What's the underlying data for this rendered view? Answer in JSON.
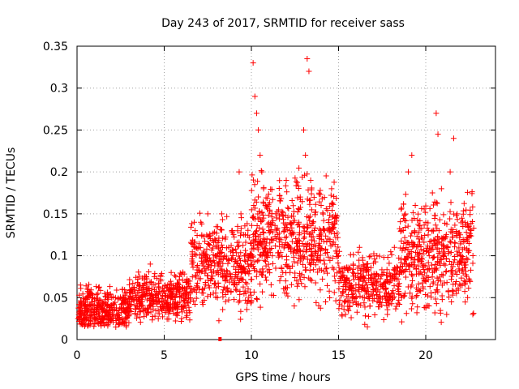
{
  "chart_data": {
    "type": "scatter",
    "title": "Day 243 of 2017, SRMTID for receiver sass",
    "xlabel": "GPS time / hours",
    "ylabel": "SRMTID / TECUs",
    "xlim": [
      0,
      24
    ],
    "ylim": [
      0,
      0.35
    ],
    "x_ticks": [
      0,
      5,
      10,
      15,
      20
    ],
    "x_tick_labels": [
      "0",
      "5",
      "10",
      "15",
      "20"
    ],
    "y_ticks": [
      0,
      0.05,
      0.1,
      0.15,
      0.2,
      0.25,
      0.3,
      0.35
    ],
    "y_tick_labels": [
      "0",
      "0.05",
      "0.1",
      "0.15",
      "0.2",
      "0.25",
      "0.3",
      "0.35"
    ],
    "grid": true,
    "marker": "+",
    "color": "#ff0000",
    "marker_low": {
      "x": 8.2,
      "y": 0
    },
    "points": [
      [
        0.1,
        0.03
      ],
      [
        0.2,
        0.065
      ],
      [
        0.3,
        0.02
      ],
      [
        0.4,
        0.045
      ],
      [
        0.5,
        0.035
      ],
      [
        0.7,
        0.04
      ],
      [
        0.9,
        0.05
      ],
      [
        1.0,
        0.03
      ],
      [
        1.2,
        0.055
      ],
      [
        1.4,
        0.035
      ],
      [
        1.6,
        0.045
      ],
      [
        1.8,
        0.02
      ],
      [
        2.0,
        0.04
      ],
      [
        2.2,
        0.05
      ],
      [
        2.4,
        0.035
      ],
      [
        2.6,
        0.06
      ],
      [
        2.8,
        0.025
      ],
      [
        3.0,
        0.045
      ],
      [
        3.2,
        0.055
      ],
      [
        3.4,
        0.04
      ],
      [
        3.6,
        0.05
      ],
      [
        3.8,
        0.035
      ],
      [
        4.0,
        0.06
      ],
      [
        4.2,
        0.09
      ],
      [
        4.4,
        0.045
      ],
      [
        4.6,
        0.055
      ],
      [
        4.8,
        0.07
      ],
      [
        5.0,
        0.04
      ],
      [
        5.2,
        0.065
      ],
      [
        5.4,
        0.08
      ],
      [
        5.6,
        0.05
      ],
      [
        5.8,
        0.06
      ],
      [
        6.0,
        0.025
      ],
      [
        6.2,
        0.055
      ],
      [
        6.4,
        0.07
      ],
      [
        6.6,
        0.09
      ],
      [
        6.8,
        0.11
      ],
      [
        7.0,
        0.06
      ],
      [
        7.1,
        0.14
      ],
      [
        7.3,
        0.1
      ],
      [
        7.5,
        0.15
      ],
      [
        7.7,
        0.08
      ],
      [
        7.9,
        0.12
      ],
      [
        8.1,
        0.09
      ],
      [
        8.3,
        0.15
      ],
      [
        8.5,
        0.07
      ],
      [
        8.7,
        0.11
      ],
      [
        8.9,
        0.13
      ],
      [
        9.1,
        0.08
      ],
      [
        9.3,
        0.2
      ],
      [
        9.4,
        0.15
      ],
      [
        9.6,
        0.1
      ],
      [
        9.8,
        0.09
      ],
      [
        10.0,
        0.045
      ],
      [
        10.1,
        0.33
      ],
      [
        10.2,
        0.29
      ],
      [
        10.3,
        0.27
      ],
      [
        10.4,
        0.25
      ],
      [
        10.5,
        0.22
      ],
      [
        10.6,
        0.2
      ],
      [
        10.7,
        0.18
      ],
      [
        10.8,
        0.16
      ],
      [
        11.0,
        0.13
      ],
      [
        11.2,
        0.1
      ],
      [
        11.4,
        0.15
      ],
      [
        11.6,
        0.12
      ],
      [
        11.8,
        0.08
      ],
      [
        12.0,
        0.19
      ],
      [
        12.2,
        0.11
      ],
      [
        12.4,
        0.14
      ],
      [
        12.6,
        0.07
      ],
      [
        12.8,
        0.17
      ],
      [
        13.0,
        0.25
      ],
      [
        13.1,
        0.22
      ],
      [
        13.2,
        0.335
      ],
      [
        13.3,
        0.32
      ],
      [
        13.4,
        0.19
      ],
      [
        13.6,
        0.13
      ],
      [
        13.8,
        0.1
      ],
      [
        14.0,
        0.16
      ],
      [
        14.2,
        0.09
      ],
      [
        14.4,
        0.12
      ],
      [
        14.6,
        0.18
      ],
      [
        14.8,
        0.07
      ],
      [
        15.0,
        0.1
      ],
      [
        15.2,
        0.04
      ],
      [
        15.4,
        0.03
      ],
      [
        15.6,
        0.06
      ],
      [
        15.8,
        0.08
      ],
      [
        16.0,
        0.05
      ],
      [
        16.2,
        0.11
      ],
      [
        16.4,
        0.07
      ],
      [
        16.6,
        0.09
      ],
      [
        16.8,
        0.04
      ],
      [
        17.0,
        0.06
      ],
      [
        17.2,
        0.1
      ],
      [
        17.4,
        0.05
      ],
      [
        17.6,
        0.08
      ],
      [
        17.8,
        0.03
      ],
      [
        18.0,
        0.07
      ],
      [
        18.2,
        0.11
      ],
      [
        18.4,
        0.06
      ],
      [
        18.6,
        0.13
      ],
      [
        18.8,
        0.09
      ],
      [
        19.0,
        0.2
      ],
      [
        19.2,
        0.22
      ],
      [
        19.4,
        0.16
      ],
      [
        19.6,
        0.12
      ],
      [
        19.8,
        0.09
      ],
      [
        20.0,
        0.14
      ],
      [
        20.2,
        0.1
      ],
      [
        20.4,
        0.08
      ],
      [
        20.6,
        0.27
      ],
      [
        20.7,
        0.245
      ],
      [
        20.9,
        0.18
      ],
      [
        21.0,
        0.12
      ],
      [
        21.2,
        0.03
      ],
      [
        21.4,
        0.2
      ],
      [
        21.6,
        0.24
      ],
      [
        21.8,
        0.15
      ],
      [
        22.0,
        0.1
      ],
      [
        22.2,
        0.07
      ],
      [
        22.4,
        0.05
      ],
      [
        22.6,
        0.13
      ],
      [
        22.7,
        0.03
      ]
    ]
  }
}
